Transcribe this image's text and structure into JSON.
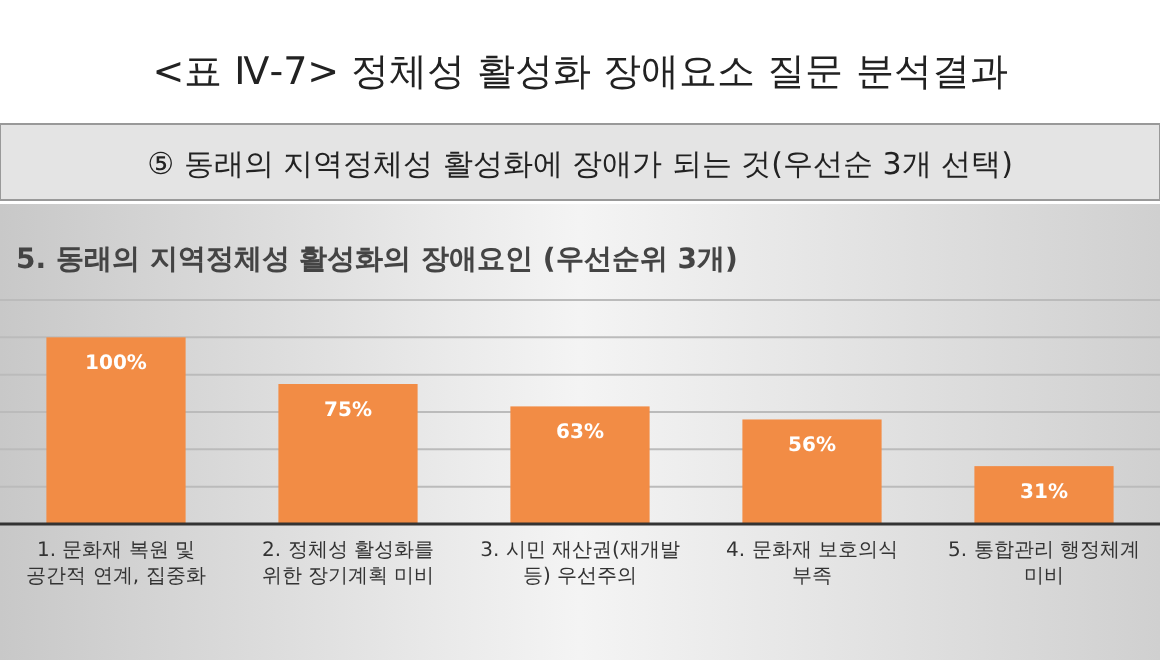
{
  "chart_data": {
    "type": "bar",
    "title": "<표 Ⅳ-7> 정체성 활성화 장애요소 질문 분석결과",
    "subtitle": "⑤ 동래의 지역정체성 활성화에 장애가 되는 것(우선순 3개 선택)",
    "annotations": [
      "5. 동래의 지역정체성 활성화의 장애요인 (우선순위 3개)"
    ],
    "categories": [
      "1. 문화재 복원 및 공간적 연계, 집중화",
      "2. 정체성 활성화를 위한 장기계획 미비",
      "3. 시민 재산권(재개발 등) 우선주의",
      "4. 문화재 보호의식 부족",
      "5. 통합관리 행정체계 미비"
    ],
    "values": [
      100,
      75,
      63,
      56,
      31
    ],
    "value_labels": [
      "100%",
      "75%",
      "63%",
      "56%",
      "31%"
    ],
    "color": "#f28c45",
    "ylim": [
      0,
      120
    ],
    "yticks": [
      {
        "value": 0,
        "label": null
      },
      {
        "value": 20,
        "label": null
      },
      {
        "value": 40,
        "label": null
      },
      {
        "value": 60,
        "label": null
      },
      {
        "value": 80,
        "label": null
      },
      {
        "value": 100,
        "label": null
      },
      {
        "value": 120,
        "label": null
      }
    ],
    "grid": true,
    "tick_labels": false
  }
}
